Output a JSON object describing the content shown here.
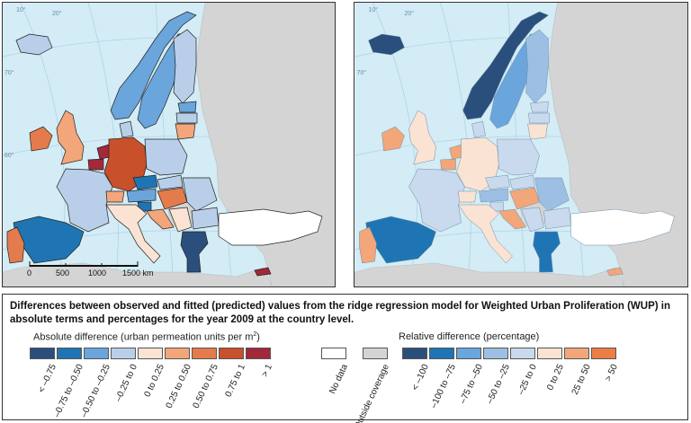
{
  "scale_bar": {
    "labels": [
      "0",
      "500",
      "1000",
      "1500 km"
    ]
  },
  "graticule_labels": [
    "20°",
    "30°",
    "40°",
    "50°",
    "60°",
    "70°",
    "10°"
  ],
  "legend": {
    "title": "Differences between observed and fitted (predicted) values from the ridge regression model for Weighted Urban Proliferation (WUP) in absolute terms and percentages for the year 2009 at the country level.",
    "absolute": {
      "heading_text": "Absolute difference (urban permeation units per m",
      "heading_sup": "2",
      "heading_close": ")",
      "classes": [
        {
          "label": "< –0.75",
          "color": "#2b4f7c"
        },
        {
          "label": "–0.75 to –0.50",
          "color": "#1f75b4"
        },
        {
          "label": "–0.50 to –0.25",
          "color": "#6aa5dc"
        },
        {
          "label": "–0.25 to 0",
          "color": "#b9cfe9"
        },
        {
          "label": "0 to 0.25",
          "color": "#fbe3d3"
        },
        {
          "label": "0.25 to 0.50",
          "color": "#f2a679"
        },
        {
          "label": "0.50 to 0.75",
          "color": "#e47b4c"
        },
        {
          "label": "0.75 to 1",
          "color": "#c8502a"
        },
        {
          "label": "> 1",
          "color": "#a3283a"
        }
      ]
    },
    "other": [
      {
        "label": "No data",
        "color": "#ffffff"
      },
      {
        "label": "Outside coverage",
        "color": "#d4d4d4"
      }
    ],
    "relative": {
      "heading": "Relative difference (percentage)",
      "classes": [
        {
          "label": "< –100",
          "color": "#2b4f7c"
        },
        {
          "label": "–100 to –75",
          "color": "#1f75b4"
        },
        {
          "label": "–75 to –50",
          "color": "#6aa5dc"
        },
        {
          "label": "–50 to –25",
          "color": "#9dbfe3"
        },
        {
          "label": "–25 to 0",
          "color": "#c9d9ee"
        },
        {
          "label": "0 to 25",
          "color": "#fbe3d3"
        },
        {
          "label": "25 to 50",
          "color": "#f2a679"
        },
        {
          "label": "> 50",
          "color": "#ec7d45"
        }
      ]
    }
  },
  "map_colors": {
    "sea": "#d3ecf5",
    "outside": "#d4d4d4",
    "border": "#222222",
    "no_data": "#ffffff"
  },
  "countries_absolute": {
    "iceland": "#b9cfe9",
    "norway": "#6aa5dc",
    "sweden": "#6aa5dc",
    "finland": "#b9cfe9",
    "estonia": "#6aa5dc",
    "latvia": "#b9cfe9",
    "lithuania": "#f2a679",
    "ireland": "#e47b4c",
    "uk": "#f2a679",
    "netherlands": "#a3283a",
    "belgium": "#a3283a",
    "germany": "#c8502a",
    "denmark": "#b9cfe9",
    "poland": "#b9cfe9",
    "france": "#b9cfe9",
    "switzerland": "#f2a679",
    "austria": "#6aa5dc",
    "czech": "#1f75b4",
    "slovakia": "#b9cfe9",
    "hungary": "#e47b4c",
    "slovenia": "#1f75b4",
    "croatia": "#f2a679",
    "romania": "#b9cfe9",
    "bulgaria": "#b9cfe9",
    "serbia": "#fbe3d3",
    "italy": "#fbe3d3",
    "spain": "#1f75b4",
    "portugal": "#e47b4c",
    "greece": "#2b4f7c",
    "turkey": "#ffffff",
    "cyprus": "#a3283a"
  },
  "countries_relative": {
    "iceland": "#2b4f7c",
    "norway": "#2b4f7c",
    "sweden": "#6aa5dc",
    "finland": "#9dbfe3",
    "estonia": "#c9d9ee",
    "latvia": "#c9d9ee",
    "lithuania": "#fbe3d3",
    "ireland": "#f2a679",
    "uk": "#fbe3d3",
    "netherlands": "#f2a679",
    "belgium": "#f2a679",
    "germany": "#fbe3d3",
    "denmark": "#c9d9ee",
    "poland": "#c9d9ee",
    "france": "#c9d9ee",
    "switzerland": "#fbe3d3",
    "austria": "#9dbfe3",
    "czech": "#c9d9ee",
    "slovakia": "#c9d9ee",
    "hungary": "#f2a679",
    "slovenia": "#c9d9ee",
    "croatia": "#f2a679",
    "romania": "#9dbfe3",
    "bulgaria": "#c9d9ee",
    "serbia": "#c9d9ee",
    "italy": "#fbe3d3",
    "spain": "#1f75b4",
    "portugal": "#f2a679",
    "greece": "#1f75b4",
    "turkey": "#ffffff",
    "cyprus": "#f2a679"
  }
}
